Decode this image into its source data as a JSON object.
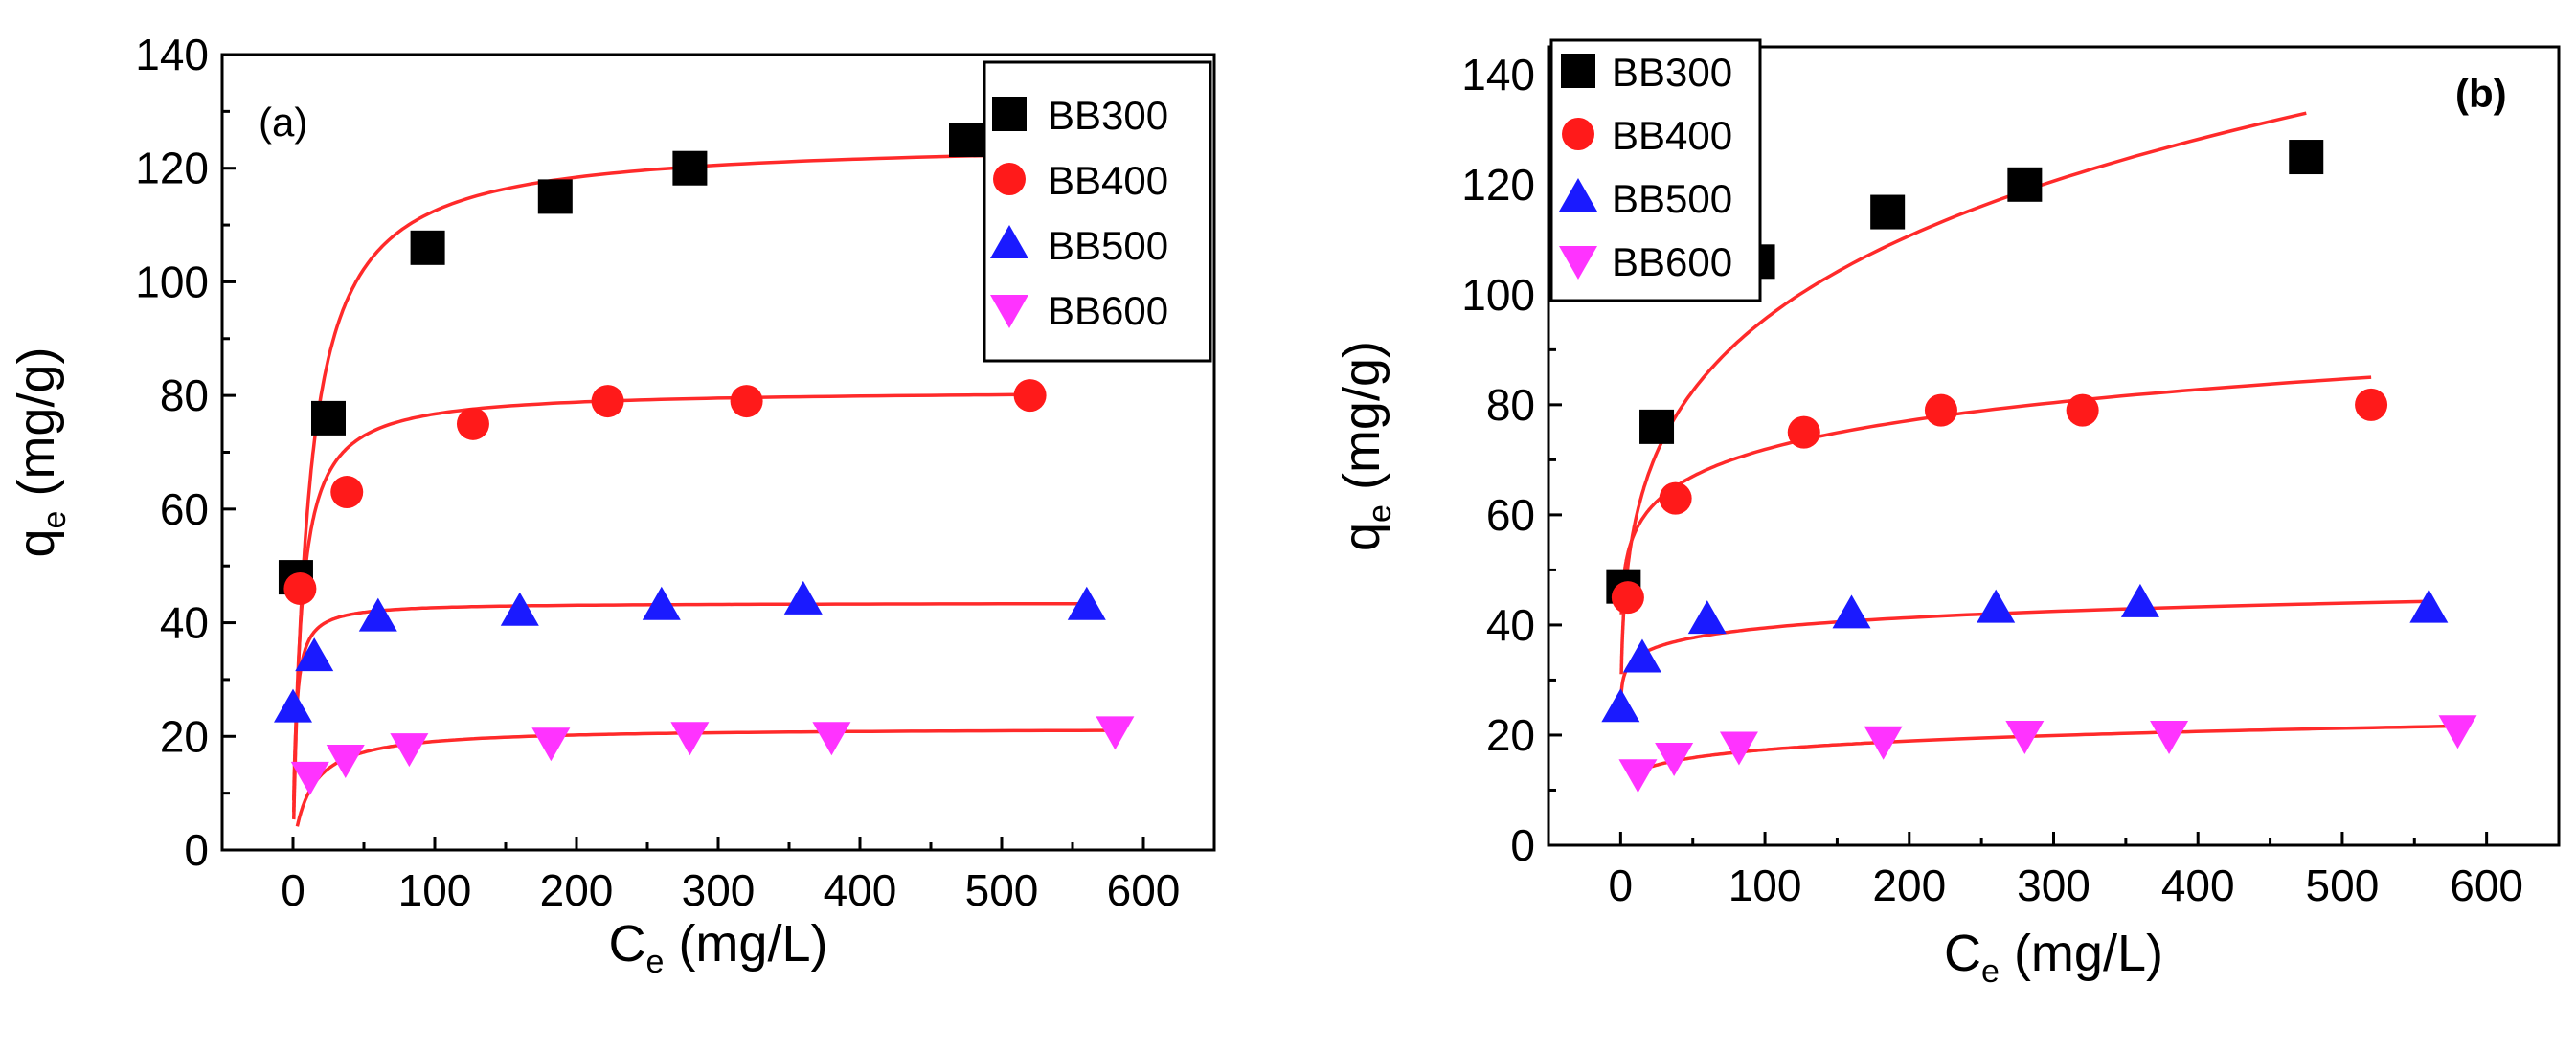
{
  "chart_data": [
    {
      "type": "scatter",
      "panel_label": "(a)",
      "xlabel": "C",
      "xlabel_sub": "e",
      "xlabel_unit": " (mg/L)",
      "ylabel": "q",
      "ylabel_sub": "e",
      "ylabel_unit": " (mg/g)",
      "xlim": [
        -50,
        650
      ],
      "ylim": [
        0,
        140
      ],
      "xticks": [
        0,
        100,
        200,
        300,
        400,
        500,
        600
      ],
      "yticks": [
        0,
        20,
        40,
        60,
        80,
        100,
        120,
        140
      ],
      "legend_position": "top-right",
      "fit_line_color": "#ff2a2a",
      "series": [
        {
          "name": "BB300",
          "marker": "square",
          "color": "#000000",
          "x": [
            2,
            25,
            95,
            185,
            280,
            475
          ],
          "y": [
            48,
            76,
            106,
            115,
            120,
            125
          ],
          "fit": {
            "model": "langmuir",
            "qmax": 125,
            "K": 0.09,
            "xmin": 0.5,
            "xmax": 520
          }
        },
        {
          "name": "BB400",
          "marker": "circle",
          "color": "#ff1a1a",
          "x": [
            5,
            38,
            127,
            222,
            320,
            520
          ],
          "y": [
            46,
            63,
            75,
            79,
            79,
            80
          ],
          "fit": {
            "model": "langmuir",
            "qmax": 81,
            "K": 0.18,
            "xmin": 0.5,
            "xmax": 520
          }
        },
        {
          "name": "BB500",
          "marker": "triangle-up",
          "color": "#1a1aff",
          "x": [
            0,
            15,
            60,
            160,
            260,
            360,
            560
          ],
          "y": [
            25,
            34,
            41,
            42,
            43,
            44,
            43
          ],
          "fit": {
            "model": "langmuir",
            "qmax": 43.5,
            "K": 0.5,
            "xmin": 0.5,
            "xmax": 560
          }
        },
        {
          "name": "BB600",
          "marker": "triangle-down",
          "color": "#ff33ff",
          "x": [
            12,
            37,
            82,
            182,
            280,
            380,
            580
          ],
          "y": [
            13,
            16,
            18,
            19,
            20,
            20,
            21
          ],
          "fit": {
            "model": "langmuir",
            "qmax": 21.5,
            "K": 0.08,
            "xmin": 3,
            "xmax": 580
          }
        }
      ]
    },
    {
      "type": "scatter",
      "panel_label": "(b)",
      "xlabel": "C",
      "xlabel_sub": "e",
      "xlabel_unit": " (mg/L)",
      "ylabel": "q",
      "ylabel_sub": "e",
      "ylabel_unit": " (mg/g)",
      "xlim": [
        -50,
        650
      ],
      "ylim": [
        0,
        145
      ],
      "xticks": [
        0,
        100,
        200,
        300,
        400,
        500,
        600
      ],
      "yticks": [
        0,
        20,
        40,
        60,
        80,
        100,
        120,
        140
      ],
      "legend_position": "top-left",
      "fit_line_color": "#ff2a2a",
      "series": [
        {
          "name": "BB300",
          "marker": "square",
          "color": "#000000",
          "x": [
            2,
            25,
            95,
            185,
            280,
            475
          ],
          "y": [
            47,
            76,
            106,
            115,
            120,
            125
          ],
          "fit": {
            "model": "freundlich",
            "Kf": 36,
            "n_inv": 0.212,
            "xmin": 0.5,
            "xmax": 475
          }
        },
        {
          "name": "BB400",
          "marker": "circle",
          "color": "#ff1a1a",
          "x": [
            5,
            38,
            127,
            222,
            320,
            520
          ],
          "y": [
            45,
            63,
            75,
            79,
            79,
            80
          ],
          "fit": {
            "model": "freundlich",
            "Kf": 45,
            "n_inv": 0.1017,
            "xmin": 0.5,
            "xmax": 520
          }
        },
        {
          "name": "BB500",
          "marker": "triangle-up",
          "color": "#1a1aff",
          "x": [
            0,
            15,
            60,
            160,
            260,
            360,
            560
          ],
          "y": [
            25,
            34,
            41,
            42,
            43,
            44,
            43
          ],
          "fit": {
            "model": "freundlich",
            "Kf": 29,
            "n_inv": 0.0669,
            "xmin": 0.5,
            "xmax": 560
          }
        },
        {
          "name": "BB600",
          "marker": "triangle-down",
          "color": "#ff33ff",
          "x": [
            12,
            37,
            82,
            182,
            280,
            380,
            580
          ],
          "y": [
            13,
            16,
            18,
            19,
            20,
            20,
            21
          ],
          "fit": {
            "model": "freundlich",
            "Kf": 9.7,
            "n_inv": 0.1261,
            "xmin": 8,
            "xmax": 580
          }
        }
      ]
    }
  ]
}
